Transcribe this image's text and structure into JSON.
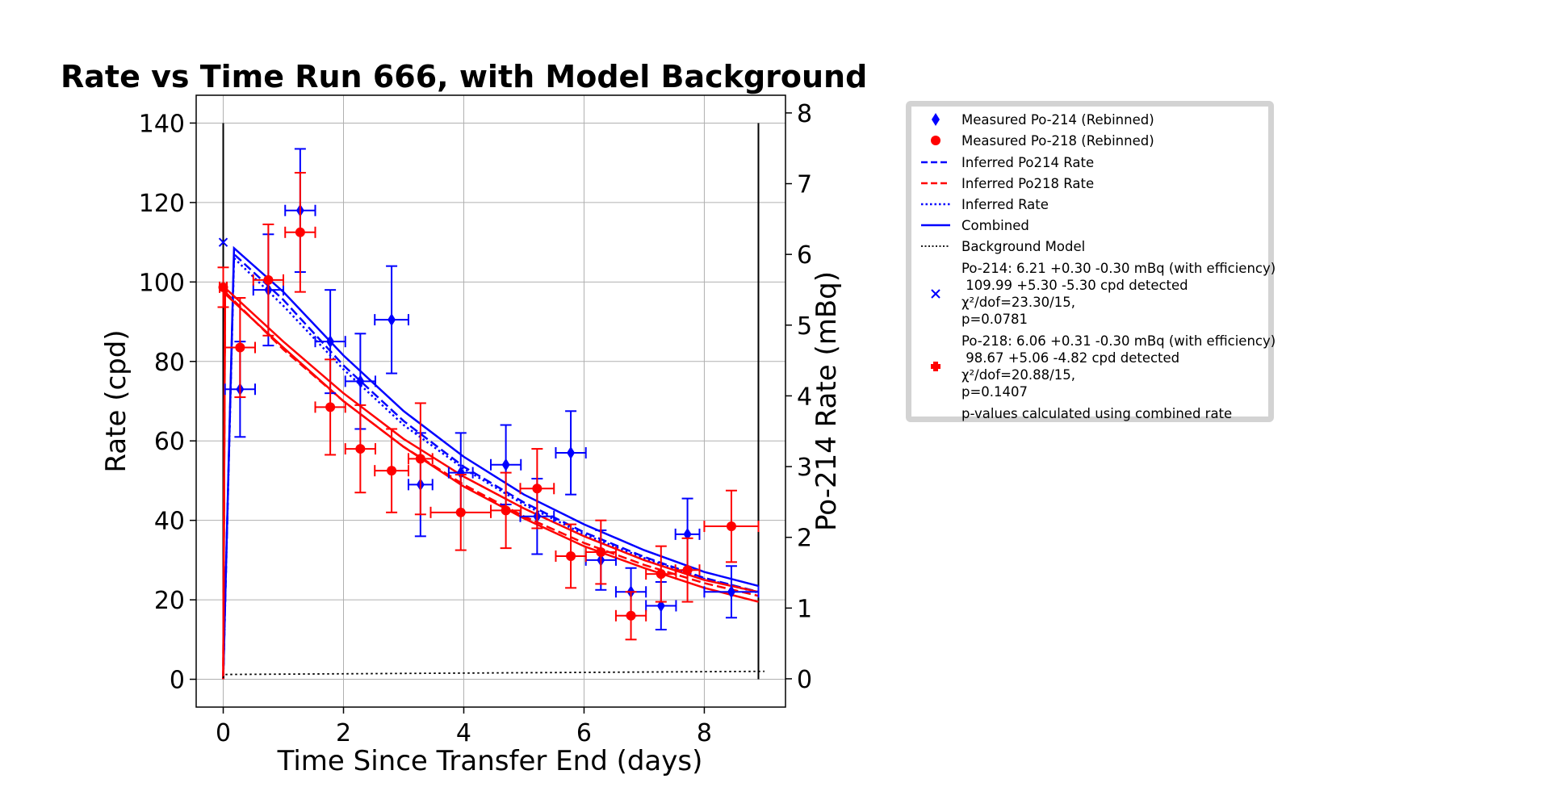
{
  "chart_data": {
    "type": "scatter",
    "title": "Rate vs Time Run 666, with Model Background",
    "xlabel": "Time Since Transfer End (days)",
    "ylabel": "Rate (cpd)",
    "y2label": "Po-214 Rate (mBq)",
    "xlim": [
      -0.45,
      9.35
    ],
    "ylim": [
      -7,
      147
    ],
    "y2lim": [
      -0.4,
      8.25
    ],
    "x_ticks": [
      0,
      2,
      4,
      6,
      8
    ],
    "y_ticks": [
      0,
      20,
      40,
      60,
      80,
      100,
      120,
      140
    ],
    "y2_ticks": [
      0,
      1,
      2,
      3,
      4,
      5,
      6,
      7,
      8
    ],
    "grid": true,
    "vlines": [
      0,
      8.9
    ],
    "vline_range": [
      0,
      140
    ],
    "series": [
      {
        "name": "Measured Po-214 (Rebinned)",
        "color": "#0000ff",
        "marker": "diamond",
        "points": [
          {
            "x": 0.28,
            "y": 73,
            "xerr": 0.25,
            "yerr": 12
          },
          {
            "x": 0.75,
            "y": 98,
            "xerr": 0.25,
            "yerr": 14
          },
          {
            "x": 1.28,
            "y": 118,
            "xerr": 0.25,
            "yerr": 15.5
          },
          {
            "x": 1.78,
            "y": 85,
            "xerr": 0.25,
            "yerr": 13
          },
          {
            "x": 2.28,
            "y": 75,
            "xerr": 0.25,
            "yerr": 12
          },
          {
            "x": 2.8,
            "y": 90.5,
            "xerr": 0.28,
            "yerr": 13.5
          },
          {
            "x": 3.28,
            "y": 49,
            "xerr": 0.2,
            "yerr": 13
          },
          {
            "x": 3.95,
            "y": 52,
            "xerr": 0.2,
            "yerr": 10
          },
          {
            "x": 4.7,
            "y": 54,
            "xerr": 0.25,
            "yerr": 10
          },
          {
            "x": 5.22,
            "y": 41,
            "xerr": 0.28,
            "yerr": 9.5
          },
          {
            "x": 5.78,
            "y": 57,
            "xerr": 0.25,
            "yerr": 10.5
          },
          {
            "x": 6.28,
            "y": 30,
            "xerr": 0.25,
            "yerr": 7.5
          },
          {
            "x": 6.78,
            "y": 22,
            "xerr": 0.25,
            "yerr": 6
          },
          {
            "x": 7.28,
            "y": 18.5,
            "xerr": 0.25,
            "yerr": 6
          },
          {
            "x": 7.72,
            "y": 36.5,
            "xerr": 0.2,
            "yerr": 9
          },
          {
            "x": 8.45,
            "y": 22,
            "xerr": 0.45,
            "yerr": 6.5
          }
        ]
      },
      {
        "name": "Measured Po-218 (Rebinned)",
        "color": "#ff0000",
        "marker": "circle",
        "points": [
          {
            "x": 0.0,
            "y": 98.67,
            "xerr": 0.06,
            "yerr": 5
          },
          {
            "x": 0.28,
            "y": 83.5,
            "xerr": 0.25,
            "yerr": 12.5
          },
          {
            "x": 0.75,
            "y": 100.5,
            "xerr": 0.25,
            "yerr": 14
          },
          {
            "x": 1.28,
            "y": 112.5,
            "xerr": 0.25,
            "yerr": 15
          },
          {
            "x": 1.78,
            "y": 68.5,
            "xerr": 0.25,
            "yerr": 12
          },
          {
            "x": 2.28,
            "y": 58,
            "xerr": 0.25,
            "yerr": 11
          },
          {
            "x": 2.8,
            "y": 52.5,
            "xerr": 0.28,
            "yerr": 10.5
          },
          {
            "x": 3.28,
            "y": 55.5,
            "xerr": 0.2,
            "yerr": 14
          },
          {
            "x": 3.95,
            "y": 42,
            "xerr": 0.5,
            "yerr": 9.5
          },
          {
            "x": 4.7,
            "y": 42.5,
            "xerr": 0.25,
            "yerr": 9.5
          },
          {
            "x": 5.22,
            "y": 48,
            "xerr": 0.28,
            "yerr": 10
          },
          {
            "x": 5.78,
            "y": 31,
            "xerr": 0.25,
            "yerr": 8
          },
          {
            "x": 6.28,
            "y": 32,
            "xerr": 0.25,
            "yerr": 8
          },
          {
            "x": 6.78,
            "y": 16,
            "xerr": 0.25,
            "yerr": 6
          },
          {
            "x": 7.28,
            "y": 26.5,
            "xerr": 0.25,
            "yerr": 7
          },
          {
            "x": 7.72,
            "y": 27.5,
            "xerr": 0.2,
            "yerr": 8
          },
          {
            "x": 8.45,
            "y": 38.5,
            "xerr": 0.45,
            "yerr": 9
          }
        ]
      },
      {
        "name": "Po-214 fit marker",
        "color": "#0000ff",
        "marker": "x",
        "points": [
          {
            "x": 0.0,
            "y": 109.99
          }
        ]
      }
    ],
    "curves": [
      {
        "name": "Inferred Po214 Rate",
        "color": "#0000ff",
        "style": "dashed",
        "points": [
          [
            0,
            0
          ],
          [
            0.18,
            107
          ],
          [
            1,
            95.5
          ],
          [
            2,
            79
          ],
          [
            3,
            65
          ],
          [
            4,
            53.5
          ],
          [
            5,
            44.5
          ],
          [
            6,
            37
          ],
          [
            7,
            30.8
          ],
          [
            8,
            25.5
          ],
          [
            8.9,
            22
          ]
        ]
      },
      {
        "name": "Inferred Po218 Rate",
        "color": "#ff0000",
        "style": "dashed",
        "points": [
          [
            0,
            0
          ],
          [
            0.03,
            97.5
          ],
          [
            1,
            83
          ],
          [
            2,
            70
          ],
          [
            3,
            58.5
          ],
          [
            4,
            49
          ],
          [
            5,
            41
          ],
          [
            6,
            34.3
          ],
          [
            7,
            28.8
          ],
          [
            8,
            24.2
          ],
          [
            8.9,
            21
          ]
        ]
      },
      {
        "name": "Inferred Rate",
        "color": "#0000ff",
        "style": "dotted",
        "points": [
          [
            0,
            0
          ],
          [
            0.18,
            106
          ],
          [
            1,
            94
          ],
          [
            2,
            78
          ],
          [
            3,
            64
          ],
          [
            4,
            53
          ],
          [
            5,
            44
          ],
          [
            6,
            36.5
          ],
          [
            7,
            30.5
          ],
          [
            8,
            25.3
          ],
          [
            8.9,
            21.8
          ]
        ]
      },
      {
        "name": "Combined",
        "color": "#0000ff",
        "style": "solid",
        "points": [
          [
            0,
            0
          ],
          [
            0.18,
            108.5
          ],
          [
            1,
            97.5
          ],
          [
            2,
            81.5
          ],
          [
            3,
            67.5
          ],
          [
            4,
            56
          ],
          [
            5,
            46.5
          ],
          [
            6,
            39
          ],
          [
            7,
            32.5
          ],
          [
            8,
            27
          ],
          [
            8.9,
            23.5
          ]
        ]
      },
      {
        "name": "Combined (Po-218)",
        "color": "#ff0000",
        "style": "solid",
        "points": [
          [
            0,
            0
          ],
          [
            0.03,
            98.5
          ],
          [
            1,
            85
          ],
          [
            2,
            72
          ],
          [
            3,
            60.5
          ],
          [
            4,
            51
          ],
          [
            5,
            43
          ],
          [
            6,
            36
          ],
          [
            7,
            30
          ],
          [
            8,
            25
          ],
          [
            8.9,
            22
          ]
        ]
      },
      {
        "name": "Inferred Po218 Rate (lower)",
        "color": "#ff0000",
        "style": "solid",
        "points": [
          [
            0,
            0
          ],
          [
            0.03,
            97
          ],
          [
            1,
            83.5
          ],
          [
            2,
            70
          ],
          [
            3,
            58.5
          ],
          [
            4,
            48.5
          ],
          [
            5,
            40.5
          ],
          [
            6,
            33.5
          ],
          [
            7,
            28
          ],
          [
            8,
            23
          ],
          [
            8.9,
            19.5
          ]
        ]
      },
      {
        "name": "Background Model",
        "color": "#000000",
        "style": "dotted",
        "points": [
          [
            0,
            0.3
          ],
          [
            0.02,
            1.2
          ],
          [
            9.0,
            2.0
          ]
        ]
      }
    ]
  },
  "legend": {
    "entries": [
      {
        "label": "Measured Po-214 (Rebinned)",
        "symbol": "blue-diamond"
      },
      {
        "label": "Measured Po-218 (Rebinned)",
        "symbol": "red-circle"
      },
      {
        "label": "Inferred Po214 Rate",
        "symbol": "blue-dashed"
      },
      {
        "label": "Inferred Po218 Rate",
        "symbol": "red-dashed"
      },
      {
        "label": "Inferred Rate",
        "symbol": "blue-dotted"
      },
      {
        "label": "Combined",
        "symbol": "blue-solid"
      },
      {
        "label": "Background Model",
        "symbol": "black-dotted"
      }
    ],
    "po214_fit": {
      "symbol": "blue-x",
      "lines": [
        "Po-214: 6.21 +0.30 -0.30 mBq (with efficiency)",
        " 109.99 +5.30 -5.30 cpd detected",
        "χ²/dof=23.30/15,",
        "p=0.0781"
      ]
    },
    "po218_fit": {
      "symbol": "red-plus",
      "lines": [
        "Po-218: 6.06 +0.31 -0.30 mBq (with efficiency)",
        " 98.67 +5.06 -4.82 cpd detected",
        "χ²/dof=20.88/15,",
        "p=0.1407"
      ]
    },
    "note": "p-values calculated using combined rate"
  }
}
